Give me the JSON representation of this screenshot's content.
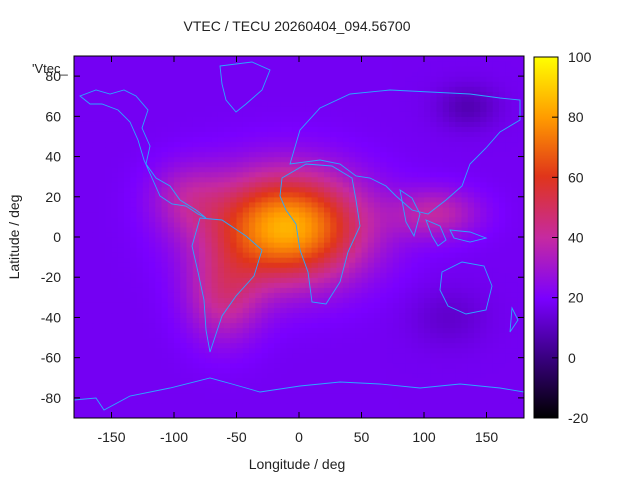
{
  "chart_data": {
    "type": "heatmap",
    "title": "VTEC / TECU 20260404_094.56700",
    "series_label": "'Vtec_",
    "xlabel": "Longitude / deg",
    "ylabel": "Latitude / deg",
    "xlim": [
      -180,
      180
    ],
    "ylim": [
      -90,
      90
    ],
    "x_ticks": [
      "-150",
      "-100",
      "-50",
      "0",
      "50",
      "100",
      "150"
    ],
    "x_tick_values": [
      -150,
      -100,
      -50,
      0,
      50,
      100,
      150
    ],
    "y_ticks": [
      "-80",
      "-60",
      "-40",
      "-20",
      "0",
      "20",
      "40",
      "60",
      "80"
    ],
    "y_tick_values": [
      -80,
      -60,
      -40,
      -20,
      0,
      20,
      40,
      60,
      80
    ],
    "colorbar": {
      "range": [
        -20,
        100
      ],
      "ticks": [
        "100",
        "80",
        "60",
        "40",
        "20",
        "0",
        "-20"
      ],
      "tick_values": [
        100,
        80,
        60,
        40,
        20,
        0,
        -20
      ],
      "palette_stops": [
        "#000000",
        "#3a0082",
        "#7a00ff",
        "#c62aa0",
        "#e0351a",
        "#ff9a00",
        "#ffff00"
      ]
    },
    "peak": {
      "lon": -10,
      "lat": 5,
      "vtec": 95
    },
    "background_vtec": 18,
    "coastline_color": "#2aa8ff"
  }
}
